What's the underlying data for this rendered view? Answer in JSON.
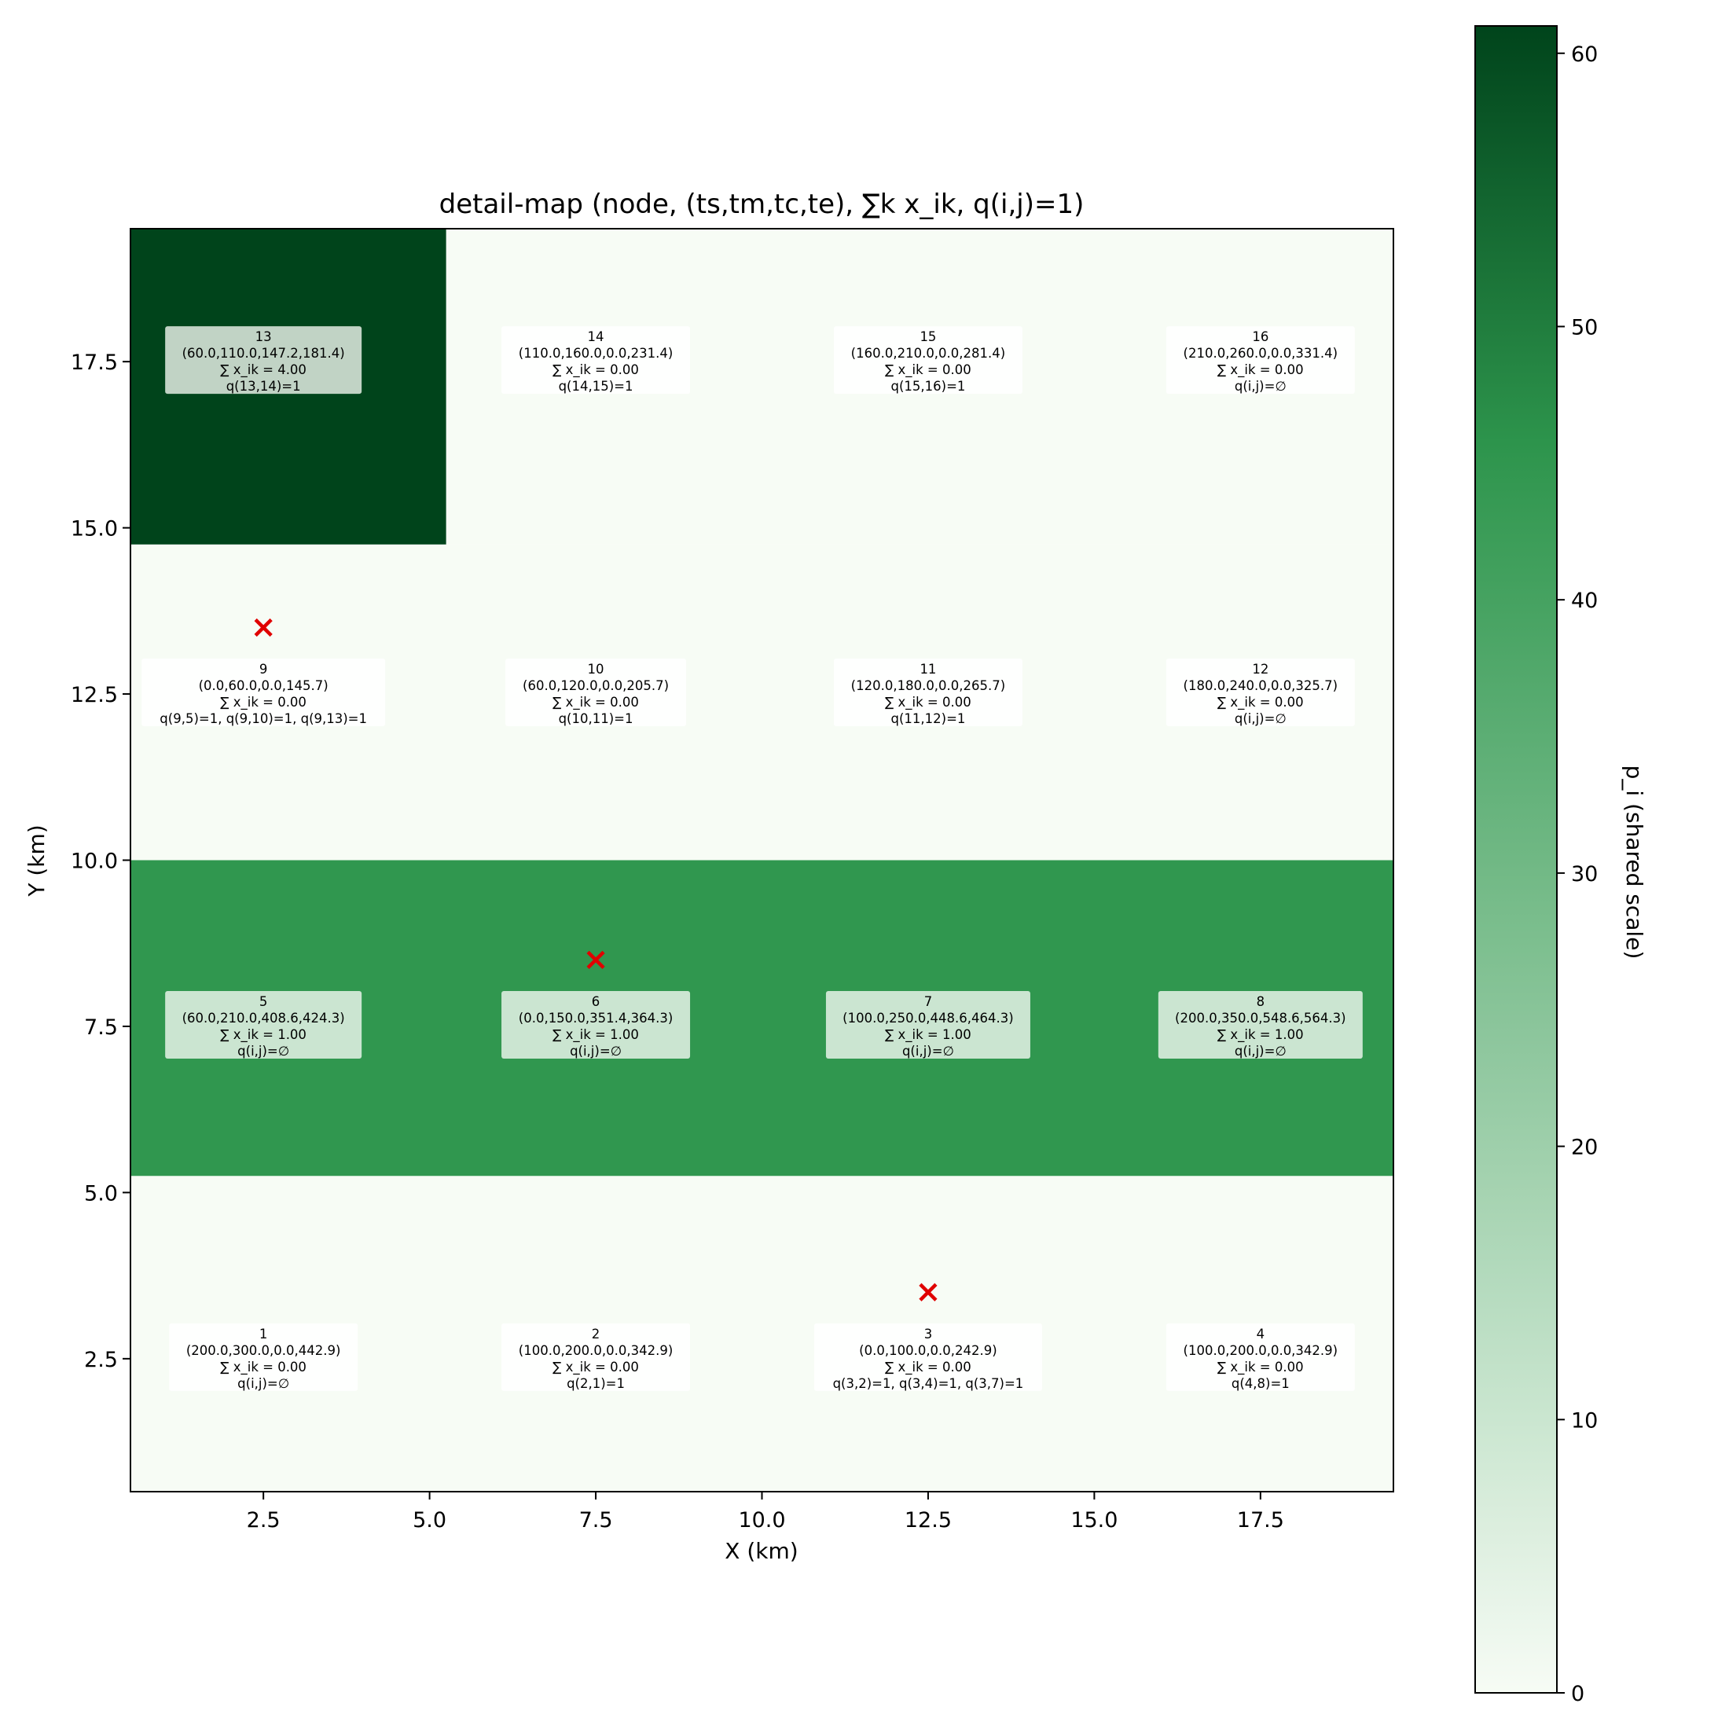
{
  "chart_data": {
    "type": "heatmap",
    "title": "detail-map (node, (ts,tm,tc,te), ∑k x_ik, q(i,j)=1)",
    "xlabel": "X (km)",
    "ylabel": "Y (km)",
    "colorbar_label": "p_i (shared scale)",
    "colormap": "Greens",
    "color_range": [
      0,
      61
    ],
    "xlim": [
      0.5,
      19.5
    ],
    "ylim": [
      0.5,
      19.5
    ],
    "x_ticks": [
      "2.5",
      "5.0",
      "7.5",
      "10.0",
      "12.5",
      "15.0",
      "17.5"
    ],
    "y_ticks": [
      "2.5",
      "5.0",
      "7.5",
      "10.0",
      "12.5",
      "15.0",
      "17.5"
    ],
    "colorbar_ticks": [
      "0",
      "10",
      "20",
      "30",
      "40",
      "50",
      "60"
    ],
    "regions": [
      {
        "x0": 0.5,
        "x1": 19.5,
        "y0": 0.5,
        "y1": 5.25,
        "value": 0
      },
      {
        "x0": 0.5,
        "x1": 19.5,
        "y0": 5.25,
        "y1": 10.0,
        "value": 45
      },
      {
        "x0": 0.5,
        "x1": 19.5,
        "y0": 10.0,
        "y1": 14.75,
        "value": 0
      },
      {
        "x0": 0.5,
        "x1": 5.25,
        "y0": 14.75,
        "y1": 19.5,
        "value": 61
      },
      {
        "x0": 5.25,
        "x1": 19.5,
        "y0": 14.75,
        "y1": 19.5,
        "value": 0
      }
    ],
    "markers": [
      {
        "x": 2.5,
        "y": 13.5
      },
      {
        "x": 7.5,
        "y": 8.5
      },
      {
        "x": 12.5,
        "y": 3.5
      }
    ],
    "nodes": [
      {
        "x": 2.5,
        "y": 2.5,
        "lines": [
          "1",
          "(200.0,300.0,0.0,442.9)",
          "∑ x_ik = 0.00",
          "q(i,j)=∅"
        ],
        "box": 0
      },
      {
        "x": 7.5,
        "y": 2.5,
        "lines": [
          "2",
          "(100.0,200.0,0.0,342.9)",
          "∑ x_ik = 0.00",
          "q(2,1)=1"
        ],
        "box": 0
      },
      {
        "x": 12.5,
        "y": 2.5,
        "lines": [
          "3",
          "(0.0,100.0,0.0,242.9)",
          "∑ x_ik = 0.00",
          "q(3,2)=1, q(3,4)=1, q(3,7)=1"
        ],
        "box": 0
      },
      {
        "x": 17.5,
        "y": 2.5,
        "lines": [
          "4",
          "(100.0,200.0,0.0,342.9)",
          "∑ x_ik = 0.00",
          "q(4,8)=1"
        ],
        "box": 0
      },
      {
        "x": 2.5,
        "y": 7.5,
        "lines": [
          "5",
          "(60.0,210.0,408.6,424.3)",
          "∑ x_ik = 1.00",
          "q(i,j)=∅"
        ],
        "box": 1
      },
      {
        "x": 7.5,
        "y": 7.5,
        "lines": [
          "6",
          "(0.0,150.0,351.4,364.3)",
          "∑ x_ik = 1.00",
          "q(i,j)=∅"
        ],
        "box": 1
      },
      {
        "x": 12.5,
        "y": 7.5,
        "lines": [
          "7",
          "(100.0,250.0,448.6,464.3)",
          "∑ x_ik = 1.00",
          "q(i,j)=∅"
        ],
        "box": 1
      },
      {
        "x": 17.5,
        "y": 7.5,
        "lines": [
          "8",
          "(200.0,350.0,548.6,564.3)",
          "∑ x_ik = 1.00",
          "q(i,j)=∅"
        ],
        "box": 1
      },
      {
        "x": 2.5,
        "y": 12.5,
        "lines": [
          "9",
          "(0.0,60.0,0.0,145.7)",
          "∑ x_ik = 0.00",
          "q(9,5)=1, q(9,10)=1, q(9,13)=1"
        ],
        "box": 0
      },
      {
        "x": 7.5,
        "y": 12.5,
        "lines": [
          "10",
          "(60.0,120.0,0.0,205.7)",
          "∑ x_ik = 0.00",
          "q(10,11)=1"
        ],
        "box": 0
      },
      {
        "x": 12.5,
        "y": 12.5,
        "lines": [
          "11",
          "(120.0,180.0,0.0,265.7)",
          "∑ x_ik = 0.00",
          "q(11,12)=1"
        ],
        "box": 0
      },
      {
        "x": 17.5,
        "y": 12.5,
        "lines": [
          "12",
          "(180.0,240.0,0.0,325.7)",
          "∑ x_ik = 0.00",
          "q(i,j)=∅"
        ],
        "box": 0
      },
      {
        "x": 2.5,
        "y": 17.5,
        "lines": [
          "13",
          "(60.0,110.0,147.2,181.4)",
          "∑ x_ik = 4.00",
          "q(13,14)=1"
        ],
        "box": 2
      },
      {
        "x": 7.5,
        "y": 17.5,
        "lines": [
          "14",
          "(110.0,160.0,0.0,231.4)",
          "∑ x_ik = 0.00",
          "q(14,15)=1"
        ],
        "box": 0
      },
      {
        "x": 12.5,
        "y": 17.5,
        "lines": [
          "15",
          "(160.0,210.0,0.0,281.4)",
          "∑ x_ik = 0.00",
          "q(15,16)=1"
        ],
        "box": 0
      },
      {
        "x": 17.5,
        "y": 17.5,
        "lines": [
          "16",
          "(210.0,260.0,0.0,331.4)",
          "∑ x_ik = 0.00",
          "q(i,j)=∅"
        ],
        "box": 0
      }
    ]
  },
  "colors": {
    "low": "#f7fcf5",
    "mid": "#2f974e",
    "high": "#00441b",
    "marker": "#e00000",
    "box_light": "#ffffff",
    "box_mid": "#cbe5d1",
    "box_dark": "#c1d3c5"
  }
}
